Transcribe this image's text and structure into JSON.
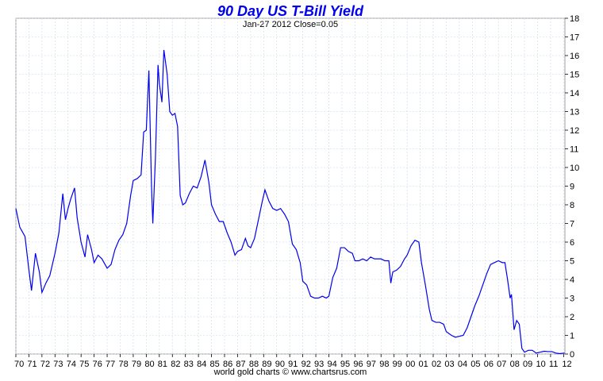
{
  "chart_data": {
    "type": "line",
    "title": "90 Day US T-Bill Yield",
    "subtitle": "Jan-27  2012   Close=0.05",
    "footer": "world gold charts © www.chartsrus.com",
    "color": "#0000ee",
    "grid": true,
    "xlim": [
      1970,
      2012.1
    ],
    "ylim": [
      0,
      18
    ],
    "yticks": [
      0,
      1,
      2,
      3,
      4,
      5,
      6,
      7,
      8,
      9,
      10,
      11,
      12,
      13,
      14,
      15,
      16,
      17,
      18
    ],
    "xticks": [
      {
        "value": 1970,
        "label": "70"
      },
      {
        "value": 1971,
        "label": "71"
      },
      {
        "value": 1972,
        "label": "72"
      },
      {
        "value": 1973,
        "label": "73"
      },
      {
        "value": 1974,
        "label": "74"
      },
      {
        "value": 1975,
        "label": "75"
      },
      {
        "value": 1976,
        "label": "76"
      },
      {
        "value": 1977,
        "label": "77"
      },
      {
        "value": 1978,
        "label": "78"
      },
      {
        "value": 1979,
        "label": "79"
      },
      {
        "value": 1980,
        "label": "80"
      },
      {
        "value": 1981,
        "label": "81"
      },
      {
        "value": 1982,
        "label": "82"
      },
      {
        "value": 1983,
        "label": "83"
      },
      {
        "value": 1984,
        "label": "84"
      },
      {
        "value": 1985,
        "label": "85"
      },
      {
        "value": 1986,
        "label": "86"
      },
      {
        "value": 1987,
        "label": "87"
      },
      {
        "value": 1988,
        "label": "88"
      },
      {
        "value": 1989,
        "label": "89"
      },
      {
        "value": 1990,
        "label": "90"
      },
      {
        "value": 1991,
        "label": "91"
      },
      {
        "value": 1992,
        "label": "92"
      },
      {
        "value": 1993,
        "label": "93"
      },
      {
        "value": 1994,
        "label": "94"
      },
      {
        "value": 1995,
        "label": "95"
      },
      {
        "value": 1996,
        "label": "96"
      },
      {
        "value": 1997,
        "label": "97"
      },
      {
        "value": 1998,
        "label": "98"
      },
      {
        "value": 1999,
        "label": "99"
      },
      {
        "value": 2000,
        "label": "00"
      },
      {
        "value": 2001,
        "label": "01"
      },
      {
        "value": 2002,
        "label": "02"
      },
      {
        "value": 2003,
        "label": "03"
      },
      {
        "value": 2004,
        "label": "04"
      },
      {
        "value": 2005,
        "label": "05"
      },
      {
        "value": 2006,
        "label": "06"
      },
      {
        "value": 2007,
        "label": "07"
      },
      {
        "value": 2008,
        "label": "08"
      },
      {
        "value": 2009,
        "label": "09"
      },
      {
        "value": 2010,
        "label": "10"
      },
      {
        "value": 2011,
        "label": "11"
      },
      {
        "value": 2012,
        "label": "12"
      }
    ],
    "x": [
      1970.0,
      1970.3,
      1970.7,
      1971.0,
      1971.2,
      1971.5,
      1971.8,
      1972.0,
      1972.3,
      1972.6,
      1973.0,
      1973.3,
      1973.6,
      1973.8,
      1974.0,
      1974.2,
      1974.5,
      1974.7,
      1975.0,
      1975.3,
      1975.5,
      1975.8,
      1976.0,
      1976.3,
      1976.6,
      1977.0,
      1977.3,
      1977.6,
      1977.9,
      1978.2,
      1978.5,
      1978.8,
      1979.0,
      1979.3,
      1979.6,
      1979.8,
      1980.0,
      1980.2,
      1980.4,
      1980.5,
      1980.7,
      1980.9,
      1981.0,
      1981.2,
      1981.35,
      1981.6,
      1981.8,
      1982.0,
      1982.2,
      1982.4,
      1982.6,
      1982.8,
      1983.0,
      1983.3,
      1983.6,
      1983.9,
      1984.2,
      1984.5,
      1984.8,
      1985.0,
      1985.3,
      1985.6,
      1985.9,
      1986.2,
      1986.5,
      1986.8,
      1987.0,
      1987.3,
      1987.6,
      1987.8,
      1988.0,
      1988.3,
      1988.6,
      1988.9,
      1989.1,
      1989.4,
      1989.7,
      1990.0,
      1990.3,
      1990.6,
      1990.9,
      1991.2,
      1991.5,
      1991.8,
      1992.0,
      1992.3,
      1992.6,
      1992.9,
      1993.2,
      1993.5,
      1993.8,
      1994.0,
      1994.3,
      1994.6,
      1994.9,
      1995.2,
      1995.5,
      1995.8,
      1996.0,
      1996.3,
      1996.6,
      1996.9,
      1997.2,
      1997.5,
      1997.8,
      1998.0,
      1998.3,
      1998.6,
      1998.75,
      1998.9,
      1999.2,
      1999.5,
      1999.8,
      2000.0,
      2000.3,
      2000.6,
      2000.9,
      2001.1,
      2001.4,
      2001.7,
      2001.9,
      2002.2,
      2002.5,
      2002.8,
      2003.0,
      2003.4,
      2003.7,
      2004.0,
      2004.3,
      2004.6,
      2004.9,
      2005.2,
      2005.5,
      2005.8,
      2006.1,
      2006.4,
      2006.7,
      2007.0,
      2007.3,
      2007.5,
      2007.7,
      2007.9,
      2008.0,
      2008.2,
      2008.4,
      2008.6,
      2008.8,
      2009.0,
      2009.3,
      2009.6,
      2009.9,
      2010.2,
      2010.5,
      2010.8,
      2011.1,
      2011.4,
      2011.7,
      2012.07
    ],
    "values": [
      7.8,
      6.8,
      6.3,
      4.5,
      3.4,
      5.4,
      4.4,
      3.3,
      3.8,
      4.2,
      5.4,
      6.5,
      8.6,
      7.2,
      7.8,
      8.3,
      8.9,
      7.3,
      6.0,
      5.2,
      6.4,
      5.6,
      4.9,
      5.3,
      5.1,
      4.6,
      4.8,
      5.6,
      6.1,
      6.4,
      7.0,
      8.5,
      9.3,
      9.4,
      9.6,
      11.9,
      12.0,
      15.2,
      9.0,
      7.0,
      10.5,
      15.5,
      14.5,
      13.5,
      16.3,
      15.0,
      13.0,
      12.8,
      12.9,
      12.2,
      8.5,
      8.0,
      8.1,
      8.6,
      9.0,
      8.9,
      9.5,
      10.4,
      9.2,
      8.0,
      7.5,
      7.1,
      7.1,
      6.5,
      6.0,
      5.3,
      5.5,
      5.6,
      6.2,
      5.8,
      5.7,
      6.2,
      7.2,
      8.2,
      8.8,
      8.2,
      7.8,
      7.7,
      7.8,
      7.5,
      7.1,
      5.9,
      5.6,
      4.9,
      3.9,
      3.7,
      3.1,
      3.0,
      3.0,
      3.1,
      3.0,
      3.1,
      4.1,
      4.6,
      5.7,
      5.7,
      5.5,
      5.4,
      5.0,
      5.0,
      5.1,
      5.0,
      5.2,
      5.1,
      5.1,
      5.1,
      5.0,
      5.0,
      3.8,
      4.4,
      4.5,
      4.7,
      5.1,
      5.3,
      5.8,
      6.1,
      6.0,
      4.9,
      3.7,
      2.4,
      1.8,
      1.7,
      1.7,
      1.6,
      1.2,
      1.0,
      0.9,
      0.95,
      1.0,
      1.4,
      2.0,
      2.6,
      3.1,
      3.7,
      4.3,
      4.8,
      4.9,
      5.0,
      4.9,
      4.9,
      4.0,
      3.0,
      3.2,
      1.3,
      1.8,
      1.6,
      0.3,
      0.1,
      0.2,
      0.2,
      0.05,
      0.1,
      0.15,
      0.13,
      0.13,
      0.05,
      0.02,
      0.05
    ]
  }
}
